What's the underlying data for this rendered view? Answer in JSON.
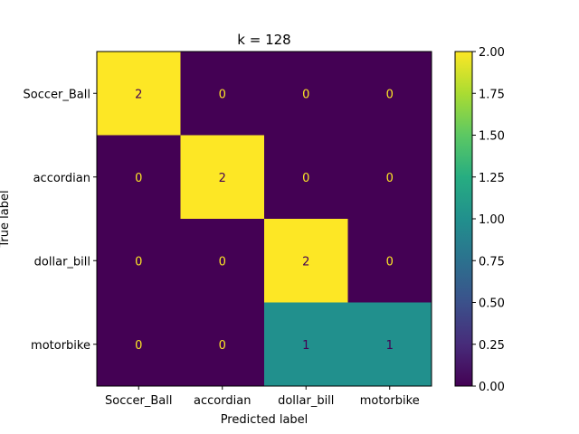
{
  "chart_data": {
    "type": "heatmap",
    "title": "k = 128",
    "xlabel": "Predicted label",
    "ylabel": "True label",
    "x_categories": [
      "Soccer_Ball",
      "accordian",
      "dollar_bill",
      "motorbike"
    ],
    "y_categories": [
      "Soccer_Ball",
      "accordian",
      "dollar_bill",
      "motorbike"
    ],
    "values": [
      [
        2,
        0,
        0,
        0
      ],
      [
        0,
        2,
        0,
        0
      ],
      [
        0,
        0,
        2,
        0
      ],
      [
        0,
        0,
        1,
        1
      ]
    ],
    "colormap": "viridis",
    "colors": {
      "low": "#440154",
      "mid": "#21918c",
      "high": "#fde725",
      "text_on_dark": "#fde725",
      "text_on_light": "#440154"
    },
    "colorbar": {
      "min": 0,
      "max": 2,
      "ticks": [
        "0.00",
        "0.25",
        "0.50",
        "0.75",
        "1.00",
        "1.25",
        "1.50",
        "1.75",
        "2.00"
      ]
    }
  }
}
